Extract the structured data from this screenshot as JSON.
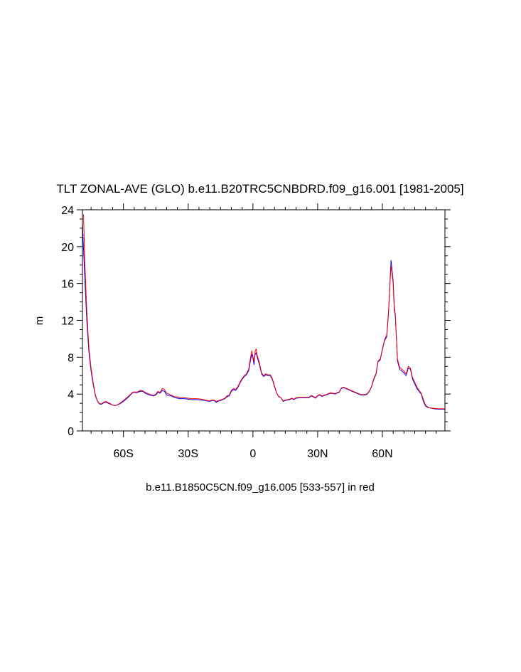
{
  "chart_data": {
    "type": "line",
    "title": "TLT ZONAL-AVE (GLO) b.e11.B20TRC5CNBDRD.f09_g16.001 [1981-2005]",
    "subtitle": "b.e11.B1850C5CN.f09_g16.005 [533-557] in red",
    "ylabel": "m",
    "xlabel": "",
    "xlim": [
      -79,
      89
    ],
    "ylim": [
      0,
      24
    ],
    "x_ticks": [
      -60,
      -30,
      0,
      30,
      60
    ],
    "x_tick_labels": [
      "60S",
      "30S",
      "0",
      "30N",
      "60N"
    ],
    "y_ticks": [
      0,
      4,
      8,
      12,
      16,
      20,
      24
    ],
    "y_tick_labels": [
      "0",
      "4",
      "8",
      "12",
      "16",
      "20",
      "24"
    ],
    "grid": false,
    "series": [
      {
        "color": "#0000ff",
        "points": [
          [
            -79,
            22.5
          ],
          [
            -78,
            17
          ],
          [
            -77,
            12
          ],
          [
            -76,
            8.5
          ],
          [
            -75,
            6.5
          ],
          [
            -74,
            5
          ],
          [
            -73,
            3.8
          ],
          [
            -72,
            3.2
          ],
          [
            -71,
            2.9
          ],
          [
            -70,
            2.9
          ],
          [
            -69,
            3.1
          ],
          [
            -68,
            3.1
          ],
          [
            -67,
            3.0
          ],
          [
            -66,
            2.9
          ],
          [
            -65,
            2.8
          ],
          [
            -64,
            2.75
          ],
          [
            -63,
            2.8
          ],
          [
            -62,
            2.9
          ],
          [
            -60,
            3.2
          ],
          [
            -58,
            3.6
          ],
          [
            -56,
            4.1
          ],
          [
            -55,
            4.2
          ],
          [
            -54,
            4.15
          ],
          [
            -52,
            4.3
          ],
          [
            -51,
            4.3
          ],
          [
            -50,
            4.1
          ],
          [
            -48,
            3.9
          ],
          [
            -46,
            3.8
          ],
          [
            -45,
            3.9
          ],
          [
            -44,
            4.2
          ],
          [
            -43,
            4.1
          ],
          [
            -42,
            4.4
          ],
          [
            -41,
            4.3
          ],
          [
            -40,
            3.9
          ],
          [
            -38,
            3.8
          ],
          [
            -36,
            3.6
          ],
          [
            -34,
            3.5
          ],
          [
            -32,
            3.5
          ],
          [
            -30,
            3.45
          ],
          [
            -28,
            3.4
          ],
          [
            -26,
            3.4
          ],
          [
            -24,
            3.35
          ],
          [
            -22,
            3.3
          ],
          [
            -20,
            3.2
          ],
          [
            -19,
            3.3
          ],
          [
            -18,
            3.3
          ],
          [
            -17,
            3.1
          ],
          [
            -16,
            3.25
          ],
          [
            -15,
            3.3
          ],
          [
            -14,
            3.4
          ],
          [
            -13,
            3.5
          ],
          [
            -12,
            3.7
          ],
          [
            -11,
            3.8
          ],
          [
            -10,
            4.3
          ],
          [
            -9,
            4.5
          ],
          [
            -8,
            4.4
          ],
          [
            -7,
            4.7
          ],
          [
            -6,
            5.2
          ],
          [
            -5,
            5.6
          ],
          [
            -4,
            5.9
          ],
          [
            -3,
            6.1
          ],
          [
            -2,
            6.5
          ],
          [
            -1,
            7.8
          ],
          [
            -0.5,
            8.3
          ],
          [
            0,
            7.9
          ],
          [
            0.5,
            7.2
          ],
          [
            1,
            8.3
          ],
          [
            1.5,
            8.5
          ],
          [
            2,
            8.0
          ],
          [
            3,
            7.2
          ],
          [
            4,
            6.2
          ],
          [
            5,
            5.9
          ],
          [
            6,
            6.1
          ],
          [
            7,
            6.0
          ],
          [
            8,
            6.0
          ],
          [
            9,
            5.6
          ],
          [
            10,
            4.8
          ],
          [
            11,
            4.1
          ],
          [
            12,
            3.7
          ],
          [
            13,
            3.6
          ],
          [
            14,
            3.2
          ],
          [
            15,
            3.3
          ],
          [
            16,
            3.35
          ],
          [
            17,
            3.4
          ],
          [
            18,
            3.5
          ],
          [
            19,
            3.4
          ],
          [
            20,
            3.55
          ],
          [
            22,
            3.6
          ],
          [
            24,
            3.6
          ],
          [
            26,
            3.6
          ],
          [
            27,
            3.8
          ],
          [
            28,
            3.7
          ],
          [
            29,
            3.55
          ],
          [
            30,
            3.8
          ],
          [
            31,
            3.9
          ],
          [
            32,
            3.75
          ],
          [
            34,
            3.9
          ],
          [
            36,
            4.1
          ],
          [
            38,
            4.0
          ],
          [
            40,
            4.2
          ],
          [
            41,
            4.6
          ],
          [
            42,
            4.7
          ],
          [
            44,
            4.5
          ],
          [
            46,
            4.3
          ],
          [
            48,
            4.1
          ],
          [
            50,
            3.9
          ],
          [
            52,
            3.9
          ],
          [
            53,
            4.0
          ],
          [
            54,
            4.3
          ],
          [
            55,
            4.8
          ],
          [
            56,
            5.6
          ],
          [
            57,
            6.1
          ],
          [
            58,
            7.5
          ],
          [
            59,
            7.7
          ],
          [
            60,
            8.8
          ],
          [
            61,
            9.8
          ],
          [
            62,
            10.2
          ],
          [
            62.5,
            11.6
          ],
          [
            63,
            13.5
          ],
          [
            64,
            18.5
          ],
          [
            65,
            16.3
          ],
          [
            65.5,
            13.6
          ],
          [
            66,
            12.6
          ],
          [
            67,
            7.6
          ],
          [
            68,
            6.7
          ],
          [
            69,
            6.5
          ],
          [
            70,
            6.3
          ],
          [
            71,
            6.0
          ],
          [
            72,
            6.8
          ],
          [
            73,
            6.7
          ],
          [
            74,
            5.6
          ],
          [
            75,
            5.1
          ],
          [
            76,
            4.6
          ],
          [
            77,
            4.3
          ],
          [
            78,
            4.0
          ],
          [
            79,
            3.2
          ],
          [
            80,
            2.7
          ],
          [
            81,
            2.55
          ],
          [
            82,
            2.5
          ],
          [
            84,
            2.4
          ],
          [
            86,
            2.35
          ],
          [
            88,
            2.35
          ],
          [
            89,
            2.35
          ]
        ]
      },
      {
        "color": "#ff0000",
        "points": [
          [
            -78.5,
            23.5
          ],
          [
            -78,
            19
          ],
          [
            -77,
            13
          ],
          [
            -76,
            9
          ],
          [
            -75,
            6.8
          ],
          [
            -74,
            5.2
          ],
          [
            -73,
            3.9
          ],
          [
            -72,
            3.25
          ],
          [
            -71,
            2.95
          ],
          [
            -70,
            2.95
          ],
          [
            -69,
            3.15
          ],
          [
            -68,
            3.2
          ],
          [
            -67,
            3.05
          ],
          [
            -66,
            2.95
          ],
          [
            -65,
            2.8
          ],
          [
            -64,
            2.75
          ],
          [
            -63,
            2.8
          ],
          [
            -62,
            2.95
          ],
          [
            -60,
            3.3
          ],
          [
            -58,
            3.7
          ],
          [
            -56,
            4.15
          ],
          [
            -55,
            4.25
          ],
          [
            -54,
            4.2
          ],
          [
            -52,
            4.4
          ],
          [
            -51,
            4.35
          ],
          [
            -50,
            4.2
          ],
          [
            -48,
            4.0
          ],
          [
            -46,
            3.85
          ],
          [
            -45,
            4.0
          ],
          [
            -44,
            4.3
          ],
          [
            -43,
            4.2
          ],
          [
            -42,
            4.6
          ],
          [
            -41,
            4.5
          ],
          [
            -40,
            4.1
          ],
          [
            -38,
            3.9
          ],
          [
            -36,
            3.7
          ],
          [
            -34,
            3.65
          ],
          [
            -32,
            3.6
          ],
          [
            -30,
            3.55
          ],
          [
            -28,
            3.5
          ],
          [
            -26,
            3.5
          ],
          [
            -24,
            3.45
          ],
          [
            -22,
            3.35
          ],
          [
            -20,
            3.25
          ],
          [
            -19,
            3.35
          ],
          [
            -18,
            3.35
          ],
          [
            -17,
            3.2
          ],
          [
            -16,
            3.3
          ],
          [
            -15,
            3.35
          ],
          [
            -14,
            3.45
          ],
          [
            -13,
            3.55
          ],
          [
            -12,
            3.8
          ],
          [
            -11,
            3.9
          ],
          [
            -10,
            4.4
          ],
          [
            -9,
            4.6
          ],
          [
            -8,
            4.5
          ],
          [
            -7,
            4.8
          ],
          [
            -6,
            5.3
          ],
          [
            -5,
            5.7
          ],
          [
            -4,
            6.0
          ],
          [
            -3,
            6.2
          ],
          [
            -2,
            6.7
          ],
          [
            -1,
            8.1
          ],
          [
            -0.5,
            8.7
          ],
          [
            0,
            8.1
          ],
          [
            0.5,
            7.5
          ],
          [
            1,
            8.6
          ],
          [
            1.5,
            8.9
          ],
          [
            2,
            8.2
          ],
          [
            3,
            7.4
          ],
          [
            4,
            6.3
          ],
          [
            5,
            6.0
          ],
          [
            6,
            6.2
          ],
          [
            7,
            6.1
          ],
          [
            8,
            6.1
          ],
          [
            9,
            5.7
          ],
          [
            10,
            4.9
          ],
          [
            11,
            4.1
          ],
          [
            12,
            3.75
          ],
          [
            13,
            3.6
          ],
          [
            14,
            3.25
          ],
          [
            15,
            3.35
          ],
          [
            16,
            3.4
          ],
          [
            17,
            3.45
          ],
          [
            18,
            3.55
          ],
          [
            19,
            3.45
          ],
          [
            20,
            3.6
          ],
          [
            22,
            3.65
          ],
          [
            24,
            3.65
          ],
          [
            26,
            3.65
          ],
          [
            27,
            3.85
          ],
          [
            28,
            3.75
          ],
          [
            29,
            3.6
          ],
          [
            30,
            3.85
          ],
          [
            31,
            3.95
          ],
          [
            32,
            3.8
          ],
          [
            34,
            3.95
          ],
          [
            36,
            4.15
          ],
          [
            38,
            4.05
          ],
          [
            40,
            4.25
          ],
          [
            41,
            4.65
          ],
          [
            42,
            4.75
          ],
          [
            44,
            4.55
          ],
          [
            46,
            4.35
          ],
          [
            48,
            4.15
          ],
          [
            50,
            3.95
          ],
          [
            52,
            3.95
          ],
          [
            53,
            4.05
          ],
          [
            54,
            4.35
          ],
          [
            55,
            4.85
          ],
          [
            56,
            5.7
          ],
          [
            57,
            6.2
          ],
          [
            58,
            7.6
          ],
          [
            59,
            7.8
          ],
          [
            60,
            8.9
          ],
          [
            61,
            9.9
          ],
          [
            62,
            10.4
          ],
          [
            62.5,
            11.8
          ],
          [
            63,
            13.6
          ],
          [
            64,
            18.0
          ],
          [
            65,
            16.0
          ],
          [
            65.5,
            13.2
          ],
          [
            66,
            12.4
          ],
          [
            67,
            7.8
          ],
          [
            68,
            6.9
          ],
          [
            69,
            6.7
          ],
          [
            70,
            6.5
          ],
          [
            71,
            6.2
          ],
          [
            72,
            7.0
          ],
          [
            73,
            6.8
          ],
          [
            74,
            5.8
          ],
          [
            75,
            5.3
          ],
          [
            76,
            4.8
          ],
          [
            77,
            4.4
          ],
          [
            78,
            4.1
          ],
          [
            79,
            3.4
          ],
          [
            80,
            2.8
          ],
          [
            81,
            2.6
          ],
          [
            82,
            2.5
          ],
          [
            84,
            2.45
          ],
          [
            86,
            2.4
          ],
          [
            88,
            2.4
          ],
          [
            89,
            2.4
          ]
        ]
      }
    ]
  }
}
